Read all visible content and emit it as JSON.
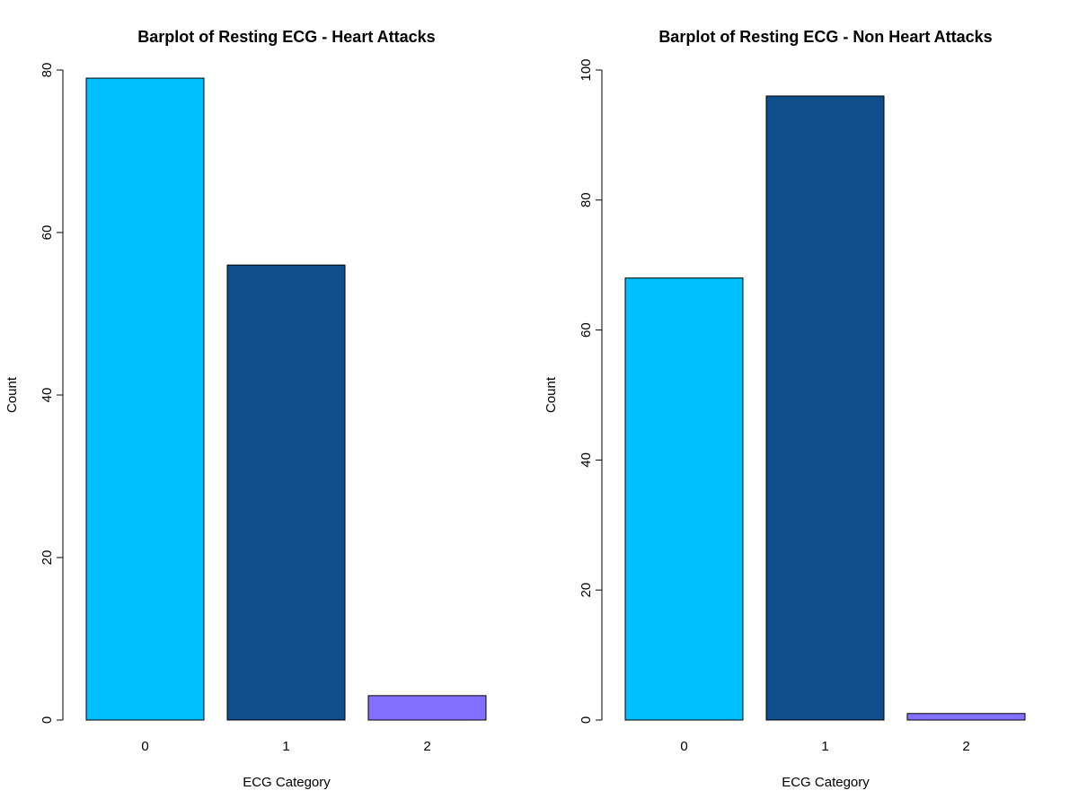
{
  "chart_data": [
    {
      "type": "bar",
      "title": "Barplot of Resting ECG - Heart Attacks",
      "xlabel": "ECG Category",
      "ylabel": "Count",
      "categories": [
        "0",
        "1",
        "2"
      ],
      "values": [
        79,
        56,
        3
      ],
      "colors": [
        "#00BFFF",
        "#104E8B",
        "#8470FF"
      ],
      "ylim": [
        0,
        80
      ],
      "yticks": [
        0,
        20,
        40,
        60,
        80
      ],
      "grid": false,
      "legend": "none"
    },
    {
      "type": "bar",
      "title": "Barplot of Resting ECG - Non Heart Attacks",
      "xlabel": "ECG Category",
      "ylabel": "Count",
      "categories": [
        "0",
        "1",
        "2"
      ],
      "values": [
        68,
        96,
        1
      ],
      "colors": [
        "#00BFFF",
        "#104E8B",
        "#8470FF"
      ],
      "ylim": [
        0,
        100
      ],
      "yticks": [
        0,
        20,
        40,
        60,
        80,
        100
      ],
      "grid": false,
      "legend": "none"
    }
  ]
}
